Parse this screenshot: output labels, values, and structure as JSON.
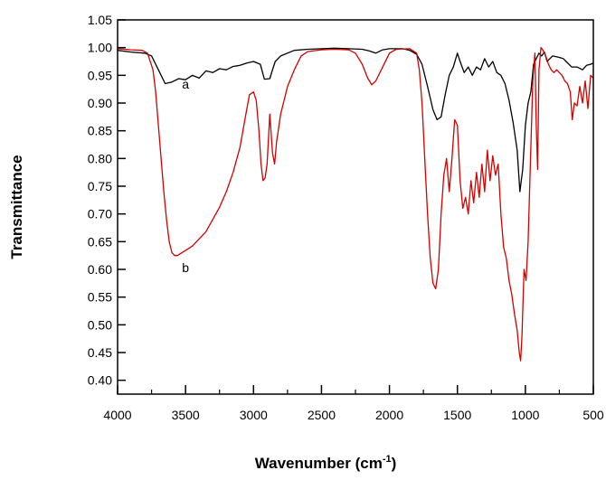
{
  "chart_data": {
    "type": "line",
    "xlabel": "Wavenumber (cm",
    "xlabel_sup": "-1",
    "xlabel_close": ")",
    "ylabel": "Transmittance",
    "xlim": [
      4000,
      500
    ],
    "ylim": [
      0.375,
      1.05
    ],
    "x_reversed": true,
    "grid": false,
    "legend": "none",
    "xticks": [
      {
        "value": 4000,
        "label": "4000"
      },
      {
        "value": 3500,
        "label": "3500"
      },
      {
        "value": 3000,
        "label": "3000"
      },
      {
        "value": 2500,
        "label": "2500"
      },
      {
        "value": 2000,
        "label": "2000"
      },
      {
        "value": 1500,
        "label": "1500"
      },
      {
        "value": 1000,
        "label": "1000"
      },
      {
        "value": 500,
        "label": "500"
      }
    ],
    "yticks": [
      {
        "value": 1.05,
        "label": "1.05"
      },
      {
        "value": 1.0,
        "label": "1.00"
      },
      {
        "value": 0.95,
        "label": "0.95"
      },
      {
        "value": 0.9,
        "label": "0.90"
      },
      {
        "value": 0.85,
        "label": "0.85"
      },
      {
        "value": 0.8,
        "label": "0.80"
      },
      {
        "value": 0.75,
        "label": "0.75"
      },
      {
        "value": 0.7,
        "label": "0.70"
      },
      {
        "value": 0.65,
        "label": "0.65"
      },
      {
        "value": 0.6,
        "label": "0.60"
      },
      {
        "value": 0.55,
        "label": "0.55"
      },
      {
        "value": 0.5,
        "label": "0.50"
      },
      {
        "value": 0.45,
        "label": "0.45"
      },
      {
        "value": 0.4,
        "label": "0.40"
      }
    ],
    "series": [
      {
        "name": "a",
        "color": "#000000",
        "label_at": [
          3500,
          0.926
        ],
        "points": [
          [
            4000,
            0.995
          ],
          [
            3900,
            0.992
          ],
          [
            3800,
            0.99
          ],
          [
            3750,
            0.985
          ],
          [
            3700,
            0.96
          ],
          [
            3650,
            0.935
          ],
          [
            3600,
            0.938
          ],
          [
            3550,
            0.944
          ],
          [
            3500,
            0.942
          ],
          [
            3450,
            0.95
          ],
          [
            3400,
            0.945
          ],
          [
            3350,
            0.958
          ],
          [
            3300,
            0.955
          ],
          [
            3250,
            0.962
          ],
          [
            3200,
            0.96
          ],
          [
            3150,
            0.966
          ],
          [
            3100,
            0.968
          ],
          [
            3050,
            0.972
          ],
          [
            3000,
            0.975
          ],
          [
            2950,
            0.97
          ],
          [
            2920,
            0.943
          ],
          [
            2880,
            0.944
          ],
          [
            2860,
            0.96
          ],
          [
            2840,
            0.975
          ],
          [
            2800,
            0.985
          ],
          [
            2700,
            0.995
          ],
          [
            2600,
            0.997
          ],
          [
            2500,
            0.998
          ],
          [
            2400,
            0.999
          ],
          [
            2300,
            0.998
          ],
          [
            2200,
            0.997
          ],
          [
            2150,
            0.994
          ],
          [
            2100,
            0.99
          ],
          [
            2050,
            0.996
          ],
          [
            2000,
            0.998
          ],
          [
            1900,
            0.998
          ],
          [
            1850,
            0.995
          ],
          [
            1800,
            0.988
          ],
          [
            1760,
            0.97
          ],
          [
            1720,
            0.93
          ],
          [
            1680,
            0.888
          ],
          [
            1650,
            0.87
          ],
          [
            1620,
            0.875
          ],
          [
            1590,
            0.915
          ],
          [
            1560,
            0.95
          ],
          [
            1530,
            0.965
          ],
          [
            1500,
            0.99
          ],
          [
            1480,
            0.975
          ],
          [
            1450,
            0.955
          ],
          [
            1420,
            0.965
          ],
          [
            1390,
            0.95
          ],
          [
            1360,
            0.965
          ],
          [
            1330,
            0.96
          ],
          [
            1300,
            0.98
          ],
          [
            1270,
            0.965
          ],
          [
            1240,
            0.975
          ],
          [
            1210,
            0.955
          ],
          [
            1180,
            0.95
          ],
          [
            1150,
            0.935
          ],
          [
            1120,
            0.905
          ],
          [
            1090,
            0.865
          ],
          [
            1060,
            0.815
          ],
          [
            1040,
            0.74
          ],
          [
            1020,
            0.78
          ],
          [
            1000,
            0.86
          ],
          [
            980,
            0.9
          ],
          [
            960,
            0.92
          ],
          [
            940,
            0.97
          ],
          [
            920,
            0.98
          ],
          [
            900,
            0.99
          ],
          [
            880,
            0.985
          ],
          [
            860,
            0.992
          ],
          [
            840,
            0.975
          ],
          [
            820,
            0.98
          ],
          [
            800,
            0.985
          ],
          [
            760,
            0.983
          ],
          [
            720,
            0.98
          ],
          [
            700,
            0.975
          ],
          [
            660,
            0.965
          ],
          [
            620,
            0.965
          ],
          [
            580,
            0.96
          ],
          [
            550,
            0.968
          ],
          [
            520,
            0.97
          ],
          [
            500,
            0.972
          ]
        ]
      },
      {
        "name": "b",
        "color": "#d40000",
        "label_at": [
          3500,
          0.595
        ],
        "points": [
          [
            4000,
            0.998
          ],
          [
            3900,
            0.996
          ],
          [
            3820,
            0.995
          ],
          [
            3780,
            0.99
          ],
          [
            3740,
            0.96
          ],
          [
            3720,
            0.92
          ],
          [
            3700,
            0.86
          ],
          [
            3680,
            0.8
          ],
          [
            3660,
            0.74
          ],
          [
            3640,
            0.69
          ],
          [
            3620,
            0.65
          ],
          [
            3600,
            0.63
          ],
          [
            3580,
            0.625
          ],
          [
            3560,
            0.625
          ],
          [
            3540,
            0.628
          ],
          [
            3500,
            0.634
          ],
          [
            3450,
            0.642
          ],
          [
            3400,
            0.655
          ],
          [
            3350,
            0.668
          ],
          [
            3300,
            0.69
          ],
          [
            3250,
            0.712
          ],
          [
            3200,
            0.74
          ],
          [
            3150,
            0.775
          ],
          [
            3100,
            0.82
          ],
          [
            3060,
            0.875
          ],
          [
            3030,
            0.915
          ],
          [
            3000,
            0.92
          ],
          [
            2980,
            0.905
          ],
          [
            2960,
            0.85
          ],
          [
            2945,
            0.79
          ],
          [
            2930,
            0.76
          ],
          [
            2915,
            0.765
          ],
          [
            2900,
            0.79
          ],
          [
            2880,
            0.88
          ],
          [
            2860,
            0.81
          ],
          [
            2845,
            0.79
          ],
          [
            2830,
            0.83
          ],
          [
            2800,
            0.88
          ],
          [
            2750,
            0.93
          ],
          [
            2700,
            0.96
          ],
          [
            2650,
            0.985
          ],
          [
            2600,
            0.993
          ],
          [
            2500,
            0.996
          ],
          [
            2400,
            0.997
          ],
          [
            2300,
            0.996
          ],
          [
            2250,
            0.99
          ],
          [
            2200,
            0.97
          ],
          [
            2160,
            0.945
          ],
          [
            2130,
            0.933
          ],
          [
            2100,
            0.94
          ],
          [
            2050,
            0.965
          ],
          [
            2000,
            0.99
          ],
          [
            1950,
            0.997
          ],
          [
            1850,
            0.998
          ],
          [
            1800,
            0.99
          ],
          [
            1780,
            0.96
          ],
          [
            1760,
            0.9
          ],
          [
            1740,
            0.8
          ],
          [
            1720,
            0.7
          ],
          [
            1700,
            0.62
          ],
          [
            1680,
            0.575
          ],
          [
            1660,
            0.565
          ],
          [
            1640,
            0.6
          ],
          [
            1620,
            0.7
          ],
          [
            1600,
            0.77
          ],
          [
            1580,
            0.8
          ],
          [
            1560,
            0.74
          ],
          [
            1540,
            0.8
          ],
          [
            1520,
            0.87
          ],
          [
            1500,
            0.86
          ],
          [
            1480,
            0.76
          ],
          [
            1460,
            0.71
          ],
          [
            1440,
            0.73
          ],
          [
            1420,
            0.7
          ],
          [
            1400,
            0.76
          ],
          [
            1380,
            0.72
          ],
          [
            1360,
            0.775
          ],
          [
            1340,
            0.73
          ],
          [
            1320,
            0.79
          ],
          [
            1300,
            0.74
          ],
          [
            1280,
            0.815
          ],
          [
            1260,
            0.76
          ],
          [
            1240,
            0.805
          ],
          [
            1220,
            0.77
          ],
          [
            1200,
            0.79
          ],
          [
            1180,
            0.7
          ],
          [
            1160,
            0.64
          ],
          [
            1140,
            0.62
          ],
          [
            1120,
            0.58
          ],
          [
            1100,
            0.555
          ],
          [
            1080,
            0.52
          ],
          [
            1060,
            0.49
          ],
          [
            1045,
            0.45
          ],
          [
            1035,
            0.435
          ],
          [
            1025,
            0.48
          ],
          [
            1010,
            0.6
          ],
          [
            995,
            0.58
          ],
          [
            980,
            0.65
          ],
          [
            960,
            0.82
          ],
          [
            945,
            0.94
          ],
          [
            930,
            0.99
          ],
          [
            920,
            0.86
          ],
          [
            910,
            0.78
          ],
          [
            900,
            0.96
          ],
          [
            885,
            1.0
          ],
          [
            870,
            0.995
          ],
          [
            850,
            0.985
          ],
          [
            830,
            0.97
          ],
          [
            810,
            0.96
          ],
          [
            790,
            0.955
          ],
          [
            770,
            0.96
          ],
          [
            750,
            0.955
          ],
          [
            730,
            0.95
          ],
          [
            710,
            0.94
          ],
          [
            690,
            0.935
          ],
          [
            670,
            0.92
          ],
          [
            655,
            0.87
          ],
          [
            640,
            0.9
          ],
          [
            620,
            0.895
          ],
          [
            600,
            0.93
          ],
          [
            580,
            0.9
          ],
          [
            560,
            0.94
          ],
          [
            540,
            0.89
          ],
          [
            520,
            0.95
          ],
          [
            500,
            0.945
          ]
        ]
      }
    ]
  }
}
